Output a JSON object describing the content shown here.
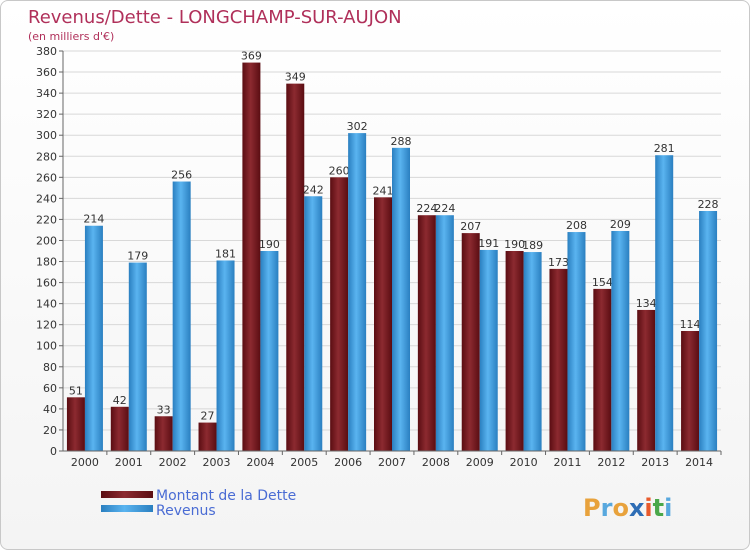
{
  "chart_data": {
    "type": "bar",
    "title": "Revenus/Dette - LONGCHAMP-SUR-AUJON",
    "subtitle": "(en milliers d'€)",
    "categories": [
      "2000",
      "2001",
      "2002",
      "2003",
      "2004",
      "2005",
      "2006",
      "2007",
      "2008",
      "2009",
      "2010",
      "2011",
      "2012",
      "2013",
      "2014"
    ],
    "series": [
      {
        "name": "Montant de la Dette",
        "color": "#7a1f24",
        "values": [
          51,
          42,
          33,
          27,
          369,
          349,
          260,
          241,
          224,
          207,
          190,
          173,
          154,
          134,
          114
        ]
      },
      {
        "name": "Revenus",
        "color": "#3e9ee0",
        "values": [
          214,
          179,
          256,
          181,
          190,
          242,
          302,
          288,
          224,
          191,
          189,
          208,
          209,
          281,
          228
        ]
      }
    ],
    "ylim": [
      0,
      380
    ],
    "ytick_step": 20,
    "grid": true,
    "legend": "bottom-left"
  },
  "logo": {
    "text": "Proxiti",
    "colors": [
      "#e8a23c",
      "#58a8de",
      "#e8a23c",
      "#2e6db5",
      "#e85a2c",
      "#4aa84a",
      "#58a8de"
    ]
  }
}
